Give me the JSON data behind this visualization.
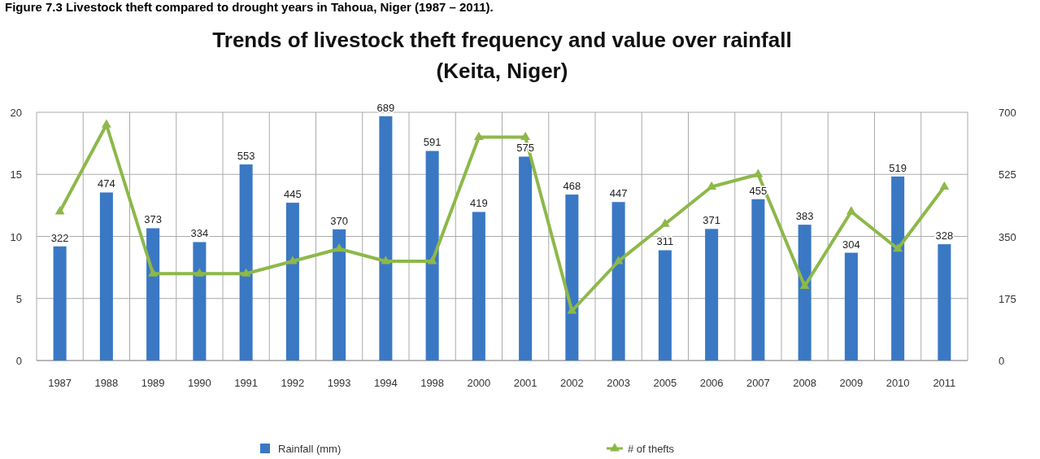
{
  "chart_data": {
    "type": "bar",
    "title": "Trends of livestock theft frequency and value over rainfall",
    "subtitle": "(Keita, Niger)",
    "annotations": [
      "Figure 7.3 Livestock theft compared to drought years in Tahoua, Niger (1987 – 2011)."
    ],
    "categories": [
      "1987",
      "1988",
      "1989",
      "1990",
      "1991",
      "1992",
      "1993",
      "1994",
      "1998",
      "2000",
      "2001",
      "2002",
      "2003",
      "2005",
      "2006",
      "2007",
      "2008",
      "2009",
      "2010",
      "2011"
    ],
    "series": [
      {
        "name": "Rainfall (mm)",
        "axis": "y2",
        "color": "#3a78c4",
        "values": [
          322,
          474,
          373,
          334,
          553,
          445,
          370,
          689,
          591,
          419,
          575,
          468,
          447,
          311,
          371,
          455,
          383,
          304,
          519,
          328
        ],
        "value_labels": [
          "322",
          "474",
          "373",
          "334",
          "553",
          "445",
          "370",
          "689",
          "591",
          "419",
          "575",
          "468",
          "447",
          "311",
          "371",
          "455",
          "383",
          "304",
          "519",
          "328"
        ]
      },
      {
        "name": "# of thefts",
        "type": "line",
        "color": "#8db84a",
        "marker": "triangle",
        "values": [
          12,
          19,
          7,
          7,
          7,
          8,
          9,
          8,
          8,
          18,
          18,
          4,
          8,
          11,
          14,
          15,
          6,
          12,
          9,
          14
        ]
      }
    ],
    "ylim": [
      0,
      20
    ],
    "yticks": [
      0,
      5,
      10,
      15,
      20
    ],
    "y2lim": [
      0,
      700
    ],
    "y2ticks": [
      0,
      175,
      350,
      525,
      700
    ],
    "grid": true,
    "legend": "bottom"
  }
}
